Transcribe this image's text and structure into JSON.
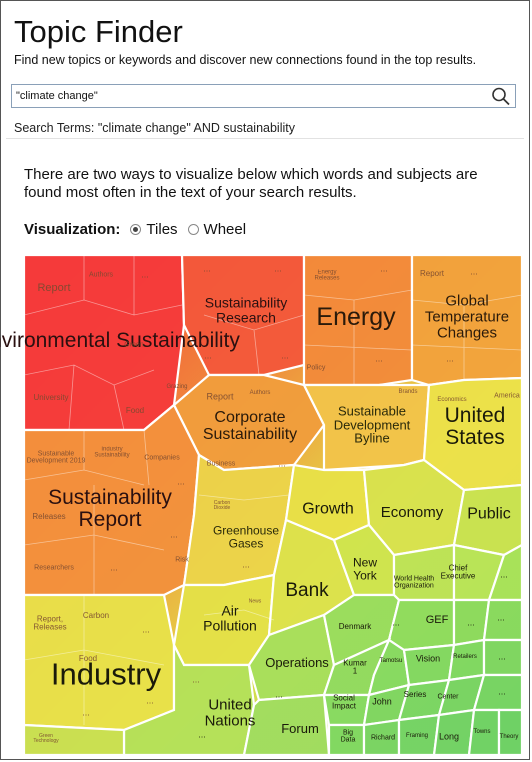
{
  "header": {
    "title": "Topic Finder",
    "subtitle": "Find new topics or keywords and discover new connections found in the top results."
  },
  "search": {
    "value": "\"climate change\""
  },
  "terms": "Search Terms: \"climate change\" AND sustainability",
  "description": "There are two ways to visualize below which words and subjects are found most often in the text of your search results.",
  "visualization": {
    "label": "Visualization:",
    "options": [
      "Tiles",
      "Wheel"
    ],
    "selected": "Tiles"
  },
  "icons": {
    "search": "magnifier-icon"
  },
  "colors": {
    "red": "#f03a3a",
    "orange": "#f08a3c",
    "yellow": "#e8dc46",
    "green": "#8fdc5a"
  },
  "topics": {
    "environmental_sustainability": "Environmental Sustainability",
    "sustainability_research": "Sustainability Research",
    "energy": "Energy",
    "global_temperature_changes": "Global Temperature Changes",
    "corporate_sustainability": "Corporate Sustainability",
    "sustainable_development_byline": "Sustainable Development Byline",
    "united_states": "United States",
    "sustainability_report": "Sustainability Report",
    "greenhouse_gases": "Greenhouse Gases",
    "growth": "Growth",
    "economy": "Economy",
    "public": "Public",
    "new_york": "New York",
    "bank": "Bank",
    "air_pollution": "Air Pollution",
    "industry": "Industry",
    "operations": "Operations",
    "united_nations": "United Nations",
    "forum": "Forum",
    "chief_executive": "Chief Executive",
    "world_health_organization": "World Health Organization",
    "gef": "GEF",
    "denmark": "Denmark",
    "vision": "Vision",
    "kumar": "Kumar 1",
    "john": "John",
    "series": "Series",
    "center": "Center",
    "social_impact": "Social Impact",
    "big_data": "Big Data",
    "richard": "Richard",
    "long": "Long",
    "towns": "Towns",
    "theory": "Theory",
    "framing": "Framing",
    "retailers": "Retailers",
    "tamotsu": "Tamotsu"
  },
  "subtopics": {
    "report": "Report",
    "authors": "Authors",
    "green": "Green",
    "university": "University",
    "food": "Food",
    "grazing": "Grazing",
    "energy_releases": "Energy Releases",
    "policy": "Policy",
    "brands": "Brands",
    "economics": "Economics",
    "america": "America",
    "sd_2019": "Sustainable Development 2019",
    "industry_sustainability": "Industry Sustainability",
    "companies": "Companies",
    "releases": "Releases",
    "researchers": "Researchers",
    "risk": "Risk",
    "business": "Business",
    "carbon_dioxide": "Carbon Dioxide",
    "report_releases": "Report, Releases",
    "carbon": "Carbon",
    "green_technology": "Green Technology",
    "news": "News",
    "more": "..."
  }
}
